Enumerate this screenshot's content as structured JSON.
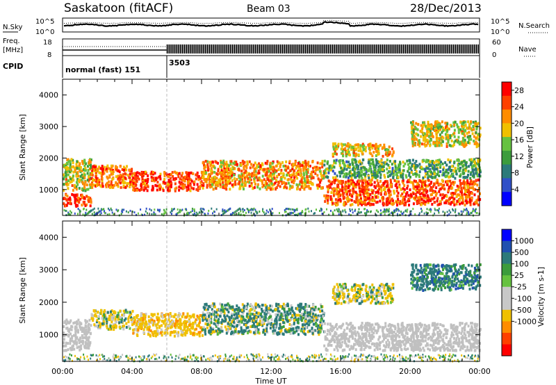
{
  "header": {
    "station": "Saskatoon (fitACF)",
    "beam": "Beam 03",
    "date": "28/Dec/2013"
  },
  "noise_panel": {
    "left_label": "N.Sky",
    "right_label": "N.Search",
    "left_ticks": [
      "10^5",
      "10^0"
    ],
    "right_ticks": [
      "10^5",
      "10^0"
    ]
  },
  "freq_panel": {
    "left_label_line1": "Freq.",
    "left_label_line2": "[MHz]",
    "left_ticks": [
      "18",
      "8"
    ],
    "right_label": "Nave",
    "right_ticks": [
      "60",
      "0"
    ]
  },
  "cpid_panel": {
    "label": "CPID",
    "segments": [
      {
        "name": "normal (fast) 151",
        "start_hour": 0
      },
      {
        "name": "3503",
        "start_hour": 6
      }
    ]
  },
  "colors": {
    "power_scale": [
      "#0000ff",
      "#3050c8",
      "#2c7a7a",
      "#3c9c3c",
      "#66c240",
      "#f0c000",
      "#ff8c00",
      "#ff4000",
      "#ff0000"
    ],
    "velocity_scale": [
      "#ff0000",
      "#ff4000",
      "#ff8c00",
      "#f0c000",
      "#c8c8c8",
      "#c8c8c8",
      "#66c240",
      "#3c9c3c",
      "#2c7a7a",
      "#2050b0",
      "#0000ff"
    ],
    "ground_scatter": "#c0c0c0"
  },
  "chart_data": [
    {
      "type": "heatmap",
      "title": "",
      "xlabel": "Time UT",
      "ylabel": "Slant Range [km]",
      "xlim": [
        "00:00",
        "24:00"
      ],
      "ylim": [
        180,
        4500
      ],
      "x_ticks": [
        "00:00",
        "04:00",
        "08:00",
        "12:00",
        "16:00",
        "20:00",
        "00:00"
      ],
      "y_ticks": [
        "1000",
        "2000",
        "3000",
        "4000"
      ],
      "colorbar": {
        "label": "Power [dB]",
        "ticks": [
          "4",
          "8",
          "12",
          "16",
          "20",
          "24",
          "28"
        ],
        "range": [
          0,
          30
        ]
      },
      "scatter_regions": [
        {
          "start_hour": 0.0,
          "end_hour": 1.6,
          "range_low": 500,
          "range_high": 900,
          "power_db": 28
        },
        {
          "start_hour": 0.0,
          "end_hour": 1.6,
          "range_low": 1000,
          "range_high": 2000,
          "power_db": 18
        },
        {
          "start_hour": 1.6,
          "end_hour": 4.0,
          "range_low": 1100,
          "range_high": 1800,
          "power_db": 24
        },
        {
          "start_hour": 4.0,
          "end_hour": 8.0,
          "range_low": 1000,
          "range_high": 1600,
          "power_db": 27
        },
        {
          "start_hour": 8.0,
          "end_hour": 15.0,
          "range_low": 1050,
          "range_high": 1950,
          "power_db": 22
        },
        {
          "start_hour": 15.0,
          "end_hour": 24.0,
          "range_low": 550,
          "range_high": 1350,
          "power_db": 26
        },
        {
          "start_hour": 15.0,
          "end_hour": 24.0,
          "range_low": 1400,
          "range_high": 2000,
          "power_db": 12
        },
        {
          "start_hour": 15.5,
          "end_hour": 19.0,
          "range_low": 2100,
          "range_high": 2500,
          "power_db": 20
        },
        {
          "start_hour": 20.0,
          "end_hour": 24.0,
          "range_low": 2400,
          "range_high": 3200,
          "power_db": 18
        }
      ]
    },
    {
      "type": "heatmap",
      "title": "",
      "xlabel": "Time UT",
      "ylabel": "Slant Range [km]",
      "xlim": [
        "00:00",
        "24:00"
      ],
      "ylim": [
        180,
        4500
      ],
      "x_ticks": [
        "00:00",
        "04:00",
        "08:00",
        "12:00",
        "16:00",
        "20:00",
        "00:00"
      ],
      "y_ticks": [
        "1000",
        "2000",
        "3000",
        "4000"
      ],
      "colorbar": {
        "label": "Velocity [m s-1]",
        "ticks": [
          "1000",
          "500",
          "100",
          "25",
          "-25",
          "-100",
          "-500",
          "-1000"
        ]
      },
      "scatter_regions": [
        {
          "start_hour": 0.0,
          "end_hour": 1.6,
          "range_low": 550,
          "range_high": 1500,
          "velocity": 0,
          "ground_scatter": true
        },
        {
          "start_hour": 1.6,
          "end_hour": 4.0,
          "range_low": 1200,
          "range_high": 1800,
          "velocity": -100
        },
        {
          "start_hour": 4.0,
          "end_hour": 8.0,
          "range_low": 1000,
          "range_high": 1700,
          "velocity": -300
        },
        {
          "start_hour": 8.0,
          "end_hour": 15.0,
          "range_low": 1050,
          "range_high": 2000,
          "velocity": 100
        },
        {
          "start_hour": 15.0,
          "end_hour": 24.0,
          "range_low": 550,
          "range_high": 1400,
          "velocity": 0,
          "ground_scatter": true
        },
        {
          "start_hour": 15.5,
          "end_hour": 19.0,
          "range_low": 2000,
          "range_high": 2600,
          "velocity": -100
        },
        {
          "start_hour": 20.0,
          "end_hour": 24.0,
          "range_low": 2400,
          "range_high": 3200,
          "velocity": 300
        }
      ]
    }
  ]
}
